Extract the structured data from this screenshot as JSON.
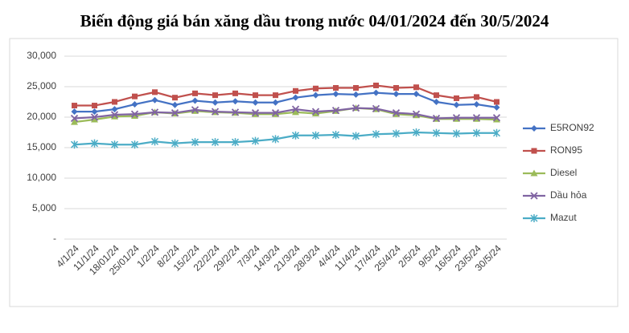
{
  "chart_data": {
    "type": "line",
    "title": "Biến động giá bán xăng dầu trong nước 04/01/2024 đến 30/5/2024",
    "categories": [
      "4/1/24",
      "11/1/24",
      "18/01/24",
      "25/01/24",
      "1/2/24",
      "8/2/24",
      "15/2/24",
      "22/2/24",
      "29/2/24",
      "7/3/24",
      "14/3/24",
      "21/3/24",
      "28/3/24",
      "4/4/24",
      "11/4/24",
      "17/4/24",
      "25/4/24",
      "2/5/24",
      "9/5/24",
      "16/5/24",
      "23/5/24",
      "30/5/24"
    ],
    "series": [
      {
        "name": "E5RON92",
        "color": "#4472c4",
        "marker": "diamond",
        "values": [
          20900,
          20900,
          21300,
          22100,
          22800,
          22000,
          22700,
          22400,
          22600,
          22400,
          22400,
          23200,
          23600,
          23800,
          23700,
          24000,
          23800,
          23800,
          22500,
          22000,
          22100,
          21600
        ]
      },
      {
        "name": "RON95",
        "color": "#c0504d",
        "marker": "square",
        "values": [
          21900,
          21900,
          22500,
          23400,
          24100,
          23200,
          23900,
          23600,
          23900,
          23600,
          23600,
          24300,
          24700,
          24800,
          24800,
          25200,
          24800,
          24900,
          23600,
          23100,
          23300,
          22500
        ]
      },
      {
        "name": "Diesel",
        "color": "#9bbb59",
        "marker": "triangle",
        "values": [
          19200,
          19600,
          20100,
          20200,
          20800,
          20600,
          21000,
          20800,
          20700,
          20500,
          20500,
          20800,
          20600,
          21000,
          21500,
          21300,
          20500,
          20300,
          19700,
          19700,
          19700,
          19600
        ]
      },
      {
        "name": "Dầu hỏa",
        "color": "#8064a2",
        "marker": "x",
        "values": [
          19800,
          20000,
          20400,
          20500,
          20800,
          20700,
          21200,
          20900,
          20800,
          20700,
          20700,
          21300,
          20900,
          21100,
          21500,
          21400,
          20700,
          20500,
          19800,
          19900,
          19900,
          19900
        ]
      },
      {
        "name": "Mazut",
        "color": "#4bacc6",
        "marker": "star",
        "values": [
          15500,
          15700,
          15500,
          15500,
          16000,
          15700,
          15900,
          15900,
          15900,
          16100,
          16400,
          17000,
          17000,
          17100,
          16900,
          17200,
          17300,
          17500,
          17400,
          17300,
          17400,
          17400
        ]
      }
    ],
    "ylim": [
      0,
      30000
    ],
    "yticks": [
      {
        "value": 0,
        "label": "-"
      },
      {
        "value": 5000,
        "label": "5,000"
      },
      {
        "value": 10000,
        "label": "10,000"
      },
      {
        "value": 15000,
        "label": "15,000"
      },
      {
        "value": 20000,
        "label": "20,000"
      },
      {
        "value": 25000,
        "label": "25,000"
      },
      {
        "value": 30000,
        "label": "30,000"
      }
    ],
    "grid": true,
    "legend": "right"
  }
}
